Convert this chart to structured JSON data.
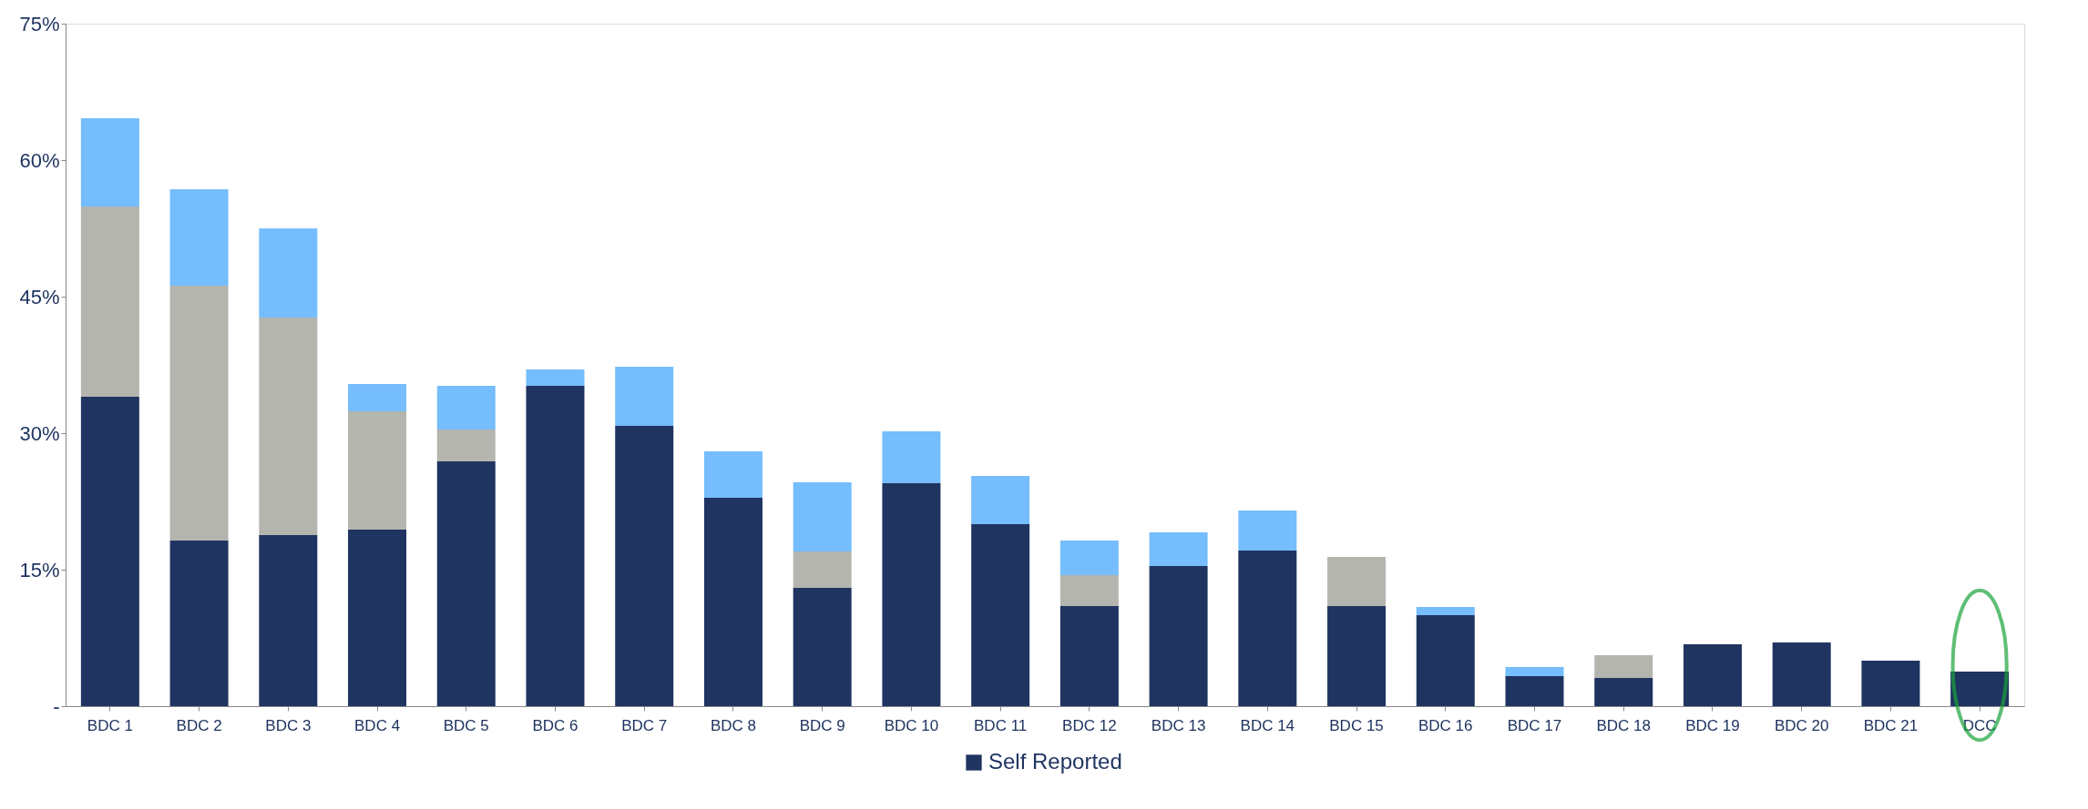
{
  "chart_data": {
    "type": "bar",
    "stacked": true,
    "categories": [
      "BDC 1",
      "BDC 2",
      "BDC 3",
      "BDC 4",
      "BDC 5",
      "BDC 6",
      "BDC 7",
      "BDC 8",
      "BDC 9",
      "BDC 10",
      "BDC 11",
      "BDC 12",
      "BDC 13",
      "BDC 14",
      "BDC 15",
      "BDC 16",
      "BDC 17",
      "BDC 18",
      "BDC 19",
      "BDC 20",
      "BDC 21",
      "DCC"
    ],
    "series": [
      {
        "name": "Self Reported",
        "color": "#1f3461",
        "values": [
          34.0,
          18.2,
          18.8,
          19.4,
          26.9,
          35.2,
          30.8,
          22.9,
          13.0,
          24.5,
          20.0,
          11.0,
          15.4,
          17.1,
          11.0,
          10.0,
          3.3,
          3.1,
          6.8,
          7.0,
          5.0,
          3.8
        ]
      },
      {
        "color": "#b5b5b0",
        "values": [
          20.9,
          28.0,
          23.9,
          13.0,
          3.5,
          null,
          null,
          null,
          4.0,
          null,
          null,
          3.4,
          null,
          null,
          5.4,
          null,
          null,
          2.5,
          null,
          null,
          null,
          null
        ]
      },
      {
        "color": "#75bdfc",
        "values": [
          9.7,
          10.6,
          9.8,
          3.0,
          4.8,
          1.8,
          6.5,
          5.1,
          7.6,
          5.7,
          5.3,
          3.8,
          3.7,
          4.4,
          null,
          0.9,
          1.0,
          null,
          null,
          null,
          null,
          null
        ]
      }
    ],
    "ylim": [
      0,
      75
    ],
    "yticks": [
      {
        "value": 0,
        "label": "-"
      },
      {
        "value": 15,
        "label": "15%"
      },
      {
        "value": 30,
        "label": "30%"
      },
      {
        "value": 45,
        "label": "45%"
      },
      {
        "value": 60,
        "label": "60%"
      },
      {
        "value": 75,
        "label": "75%"
      }
    ],
    "grid": false,
    "legend": "bottom"
  }
}
